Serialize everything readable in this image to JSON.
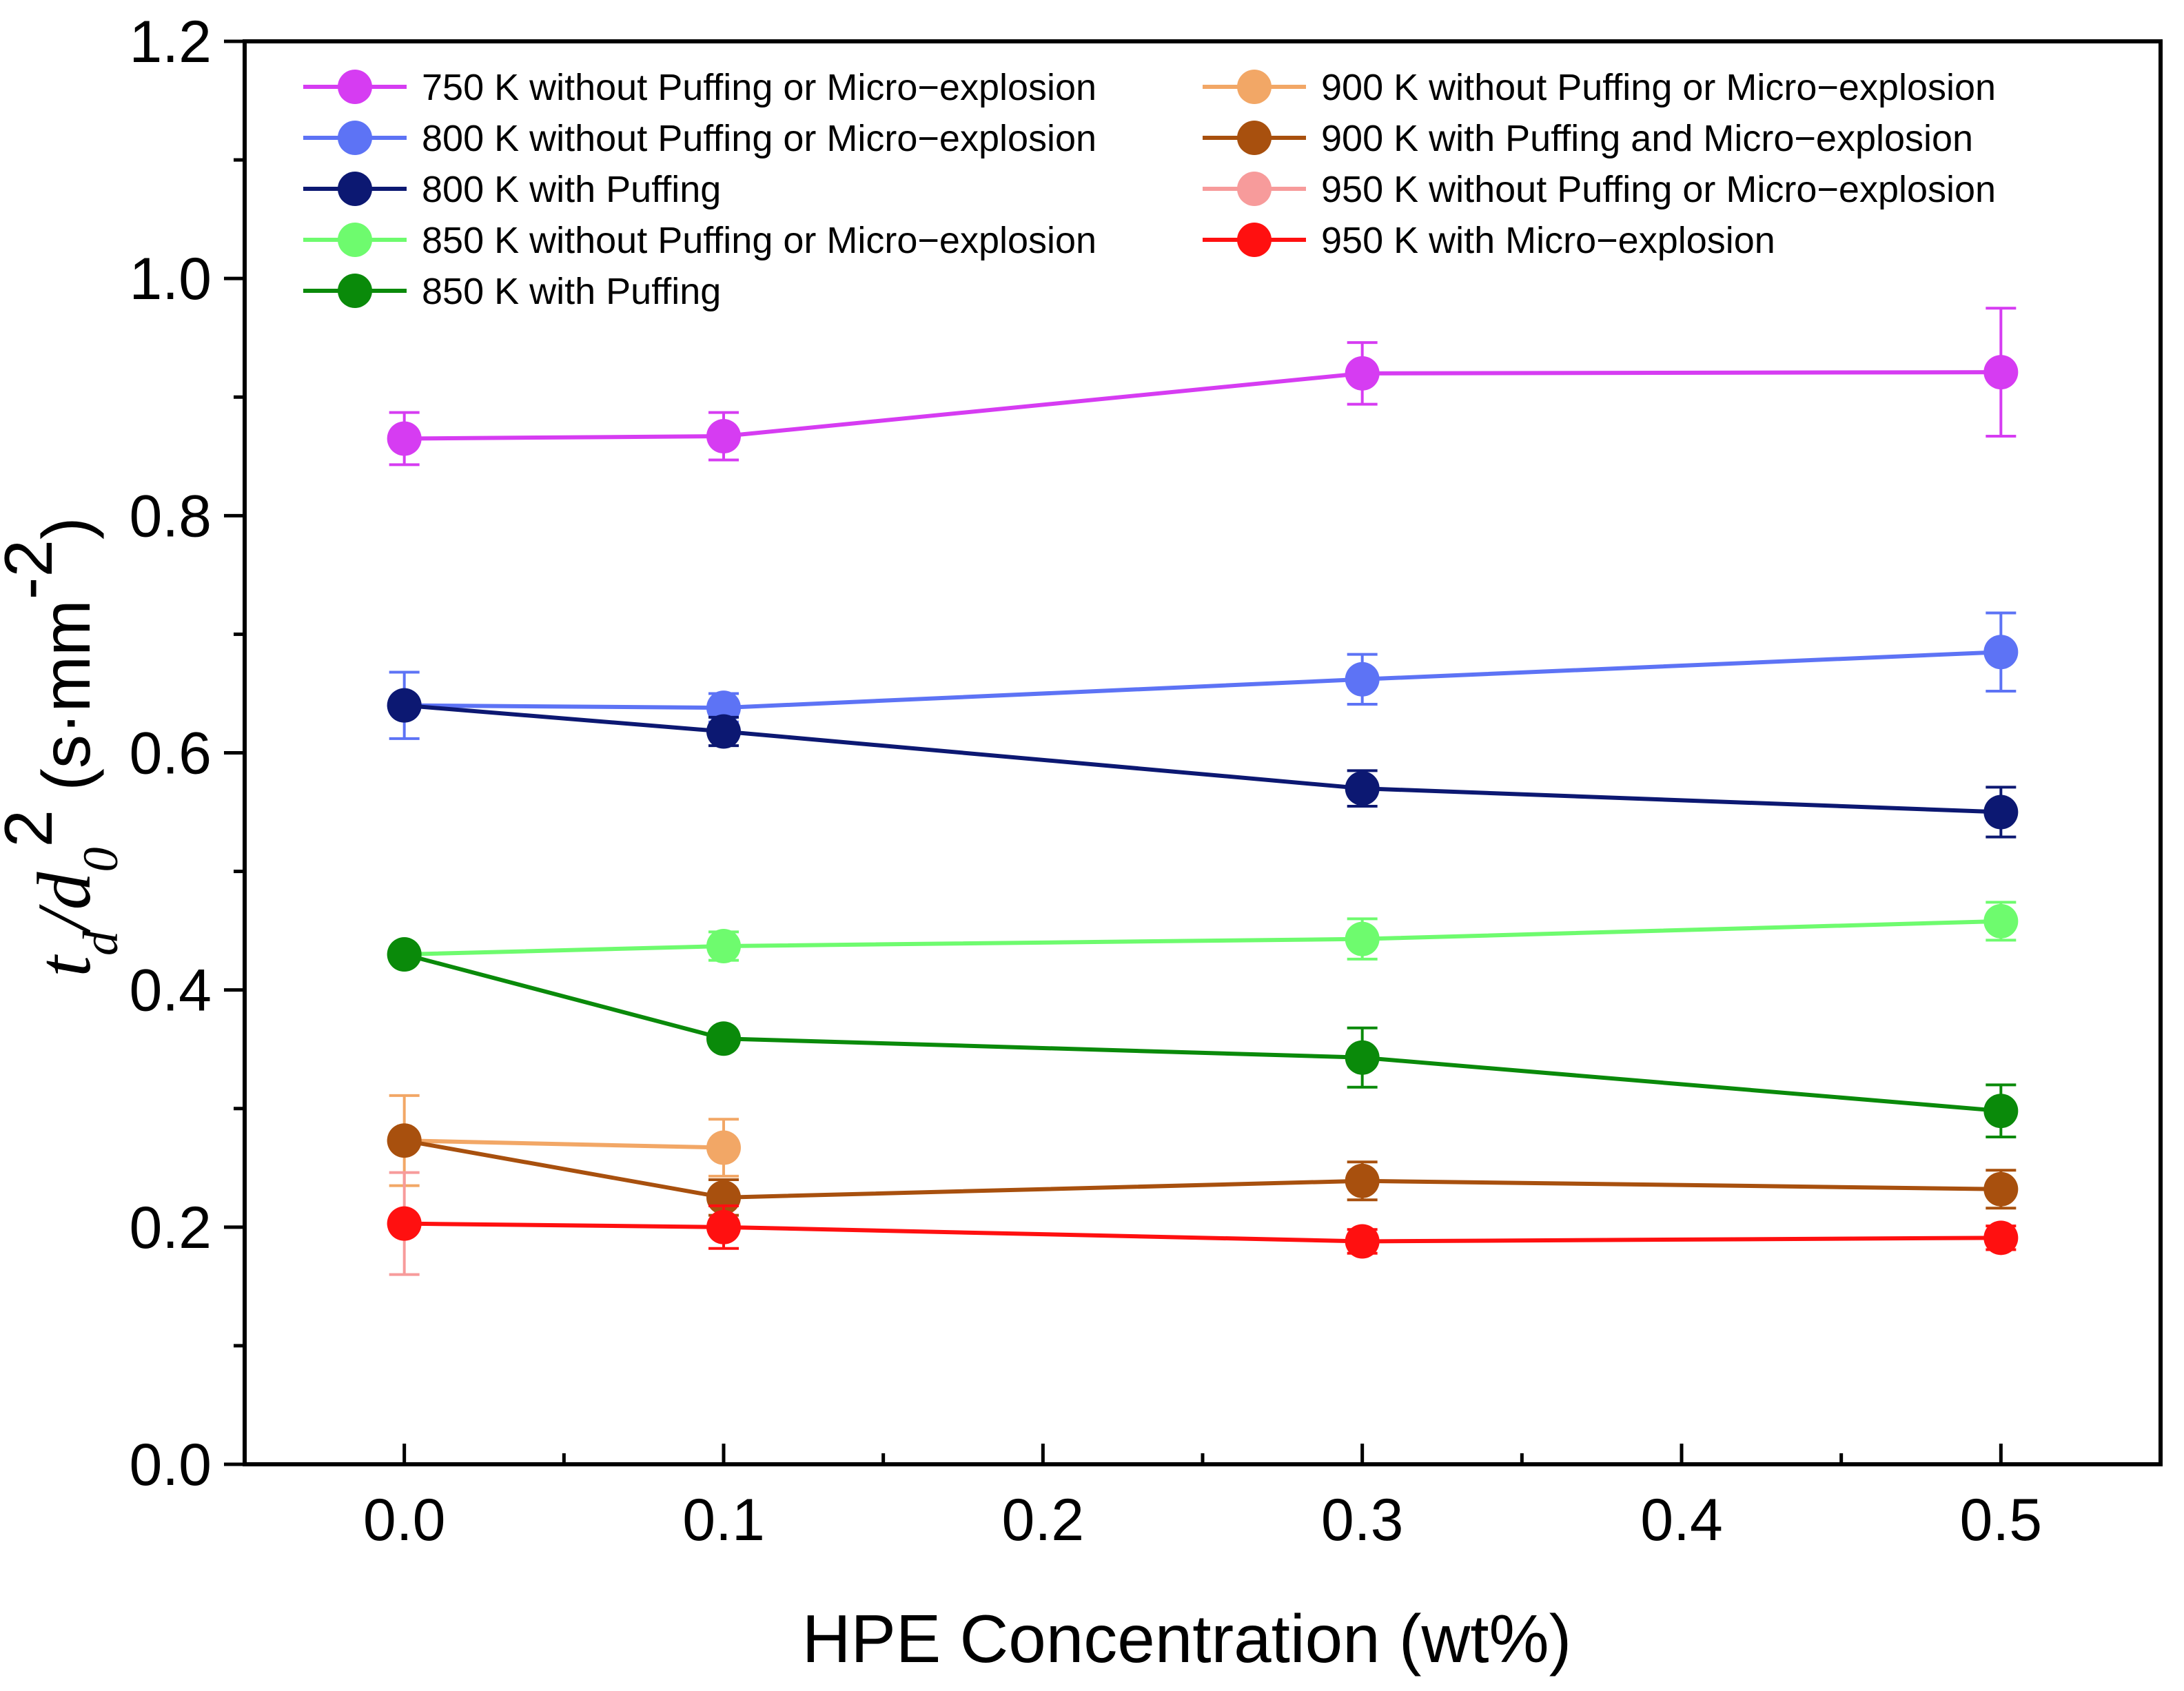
{
  "chart_data": {
    "type": "line",
    "x_tick_labels": [
      "0.0",
      "0.1",
      "0.2",
      "0.3",
      "0.4",
      "0.5"
    ],
    "y_tick_labels": [
      "0.0",
      "0.2",
      "0.4",
      "0.6",
      "0.8",
      "1.0",
      "1.2"
    ],
    "xlabel": "HPE Concentration (wt%)",
    "ylabel": {
      "t": "t",
      "t_sub": "d",
      "slash": "/",
      "d": "d",
      "d_sub": "0",
      "d_sup": "2",
      "unit_open": " (s·mm",
      "unit_sup": "-2",
      "unit_close": ")"
    },
    "xlim": [
      -0.05,
      0.55
    ],
    "ylim": [
      0,
      1.2
    ],
    "x_ticks": [
      0,
      0.1,
      0.2,
      0.3,
      0.4,
      0.5
    ],
    "y_ticks": [
      0,
      0.2,
      0.4,
      0.6,
      0.8,
      1.0,
      1.2
    ],
    "legend_position": "top",
    "series": [
      {
        "name": "750 K without Puffing or Micro−explosion",
        "color": "#d63cf2",
        "x": [
          0,
          0.1,
          0.3,
          0.5
        ],
        "y": [
          0.865,
          0.867,
          0.92,
          0.921
        ],
        "err": [
          0.022,
          0.02,
          0.026,
          0.054
        ]
      },
      {
        "name": "800 K without Puffing or Micro−explosion",
        "color": "#5d73f5",
        "x": [
          0,
          0.1,
          0.3,
          0.5
        ],
        "y": [
          0.64,
          0.638,
          0.662,
          0.685
        ],
        "err": [
          0.028,
          0.012,
          0.021,
          0.033
        ]
      },
      {
        "name": "800 K with Puffing",
        "color": "#0c1872",
        "x": [
          0,
          0.1,
          0.3,
          0.5
        ],
        "y": [
          0.64,
          0.618,
          0.57,
          0.55
        ],
        "err": [
          0,
          0.012,
          0.015,
          0.021
        ]
      },
      {
        "name": "850 K without Puffing or Micro−explosion",
        "color": "#6efb6e",
        "x": [
          0,
          0.1,
          0.3,
          0.5
        ],
        "y": [
          0.43,
          0.437,
          0.443,
          0.458
        ],
        "err": [
          0,
          0.012,
          0.017,
          0.016
        ]
      },
      {
        "name": "850 K with Puffing",
        "color": "#0a8a0a",
        "x": [
          0,
          0.1,
          0.3,
          0.5
        ],
        "y": [
          0.43,
          0.359,
          0.343,
          0.298
        ],
        "err": [
          0,
          0,
          0.025,
          0.022
        ]
      },
      {
        "name": "900 K without Puffing or Micro−explosion",
        "color": "#f2a766",
        "x": [
          0,
          0.1
        ],
        "y": [
          0.273,
          0.267
        ],
        "err": [
          0.038,
          0.024
        ]
      },
      {
        "name": "900 K with Puffing and Micro−explosion",
        "color": "#a8500e",
        "x": [
          0,
          0.1,
          0.3,
          0.5
        ],
        "y": [
          0.273,
          0.225,
          0.239,
          0.232
        ],
        "err": [
          0,
          0.015,
          0.016,
          0.016
        ]
      },
      {
        "name": "950 K without Puffing or Micro−explosion",
        "color": "#f79b9b",
        "x": [
          0
        ],
        "y": [
          0.203
        ],
        "err": [
          0.043
        ]
      },
      {
        "name": "950 K with Micro−explosion",
        "color": "#ff1010",
        "x": [
          0,
          0.1,
          0.3,
          0.5
        ],
        "y": [
          0.203,
          0.2,
          0.188,
          0.191
        ],
        "err": [
          0,
          0.018,
          0.01,
          0.01
        ]
      }
    ]
  }
}
